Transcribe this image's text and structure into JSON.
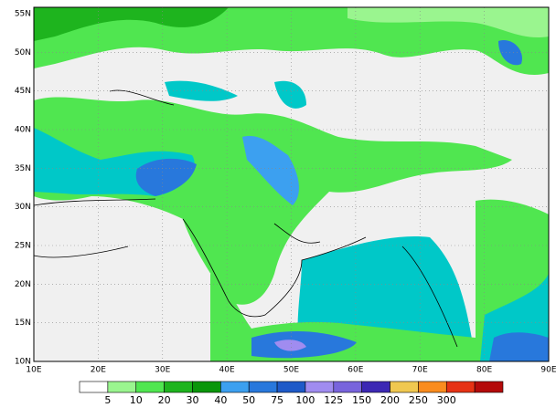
{
  "map": {
    "lat_labels": [
      "55N",
      "50N",
      "45N",
      "40N",
      "35N",
      "30N",
      "25N",
      "20N",
      "15N",
      "10N"
    ],
    "lon_labels": [
      "10E",
      "20E",
      "30E",
      "40E",
      "50E",
      "60E",
      "70E",
      "80E",
      "90E"
    ]
  },
  "legend": {
    "colors": [
      "#ffffff",
      "#9af58f",
      "#50e650",
      "#1eb41e",
      "#0a960a",
      "#3ca0f0",
      "#2878dc",
      "#1e5ac8",
      "#a08cf0",
      "#7864dc",
      "#3c28b4",
      "#f0c850",
      "#fa8c1e",
      "#e63214",
      "#b40a0a"
    ],
    "labels": [
      5,
      10,
      20,
      30,
      40,
      50,
      75,
      100,
      125,
      150,
      200,
      250,
      300
    ]
  }
}
